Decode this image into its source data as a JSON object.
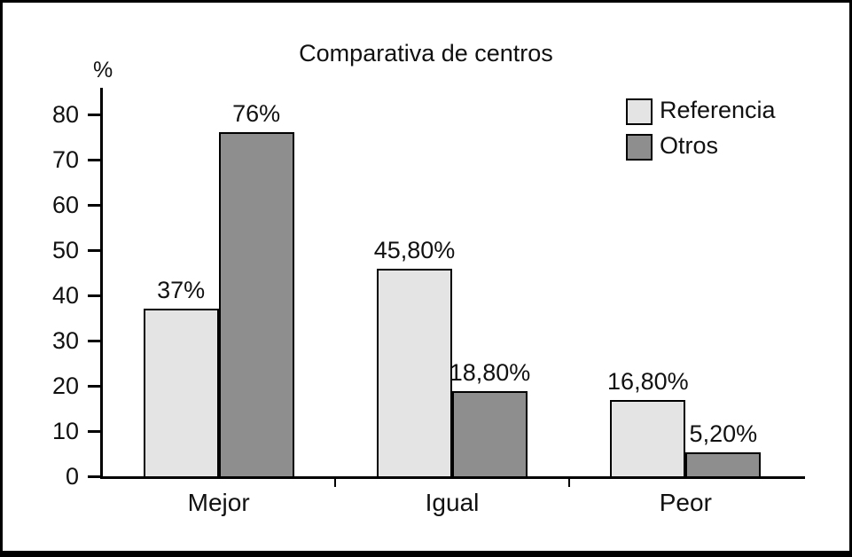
{
  "chart_data": {
    "type": "bar",
    "title": "Comparativa de centros",
    "xlabel": "",
    "ylabel": "%",
    "categories": [
      "Mejor",
      "Igual",
      "Peor"
    ],
    "series": [
      {
        "name": "Referencia",
        "color": "#e4e4e4",
        "values": [
          37,
          45.8,
          16.8
        ],
        "labels": [
          "37%",
          "45,80%",
          "16,80%"
        ]
      },
      {
        "name": "Otros",
        "color": "#8e8e8e",
        "values": [
          76,
          18.8,
          5.2
        ],
        "labels": [
          "76%",
          "18,80%",
          "5,20%"
        ]
      }
    ],
    "ylim": [
      0,
      80
    ],
    "yticks": [
      0,
      10,
      20,
      30,
      40,
      50,
      60,
      70,
      80
    ],
    "grid": false,
    "legend_position": "top-right",
    "axis_color": "#000000"
  }
}
